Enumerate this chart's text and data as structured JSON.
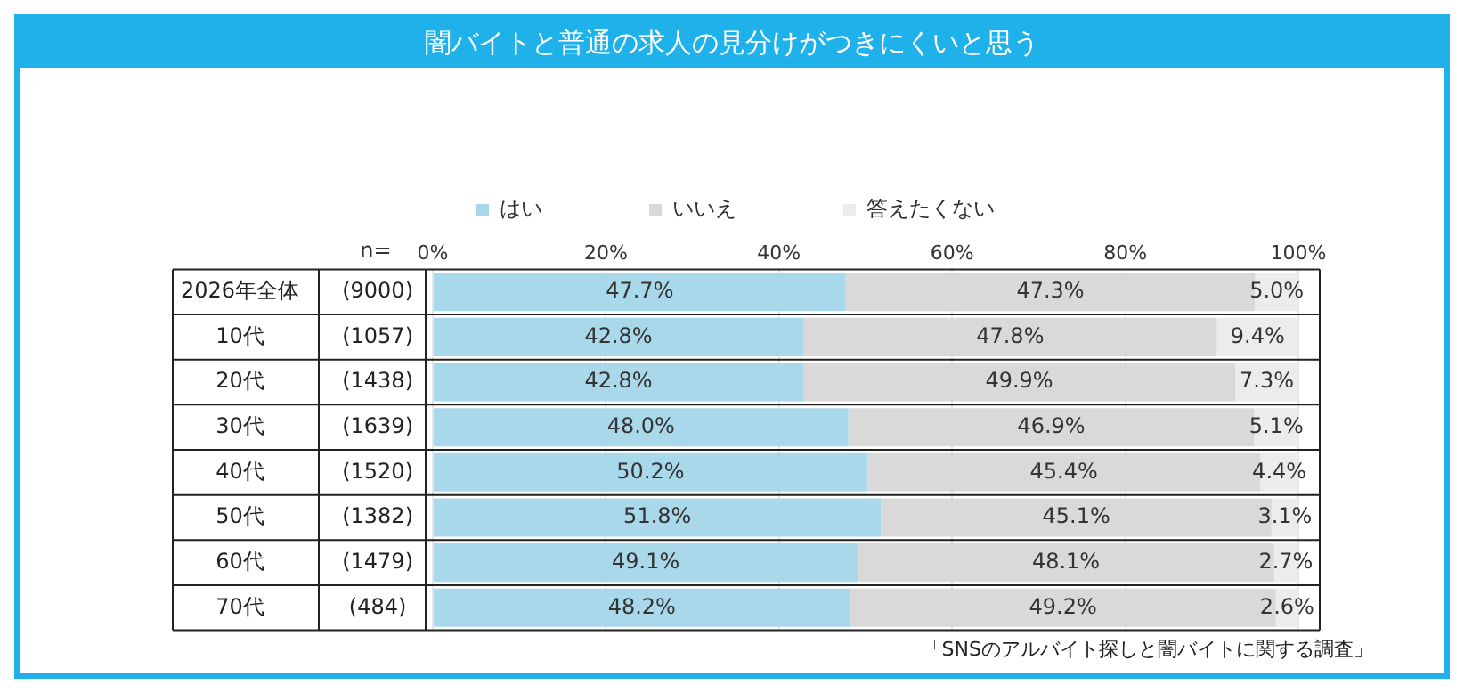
{
  "chart_data": {
    "type": "bar",
    "orientation": "horizontal",
    "stacked": true,
    "title": "闇バイトと普通の求人の見分けがつきにくいと思う",
    "categories": [
      "2026年全体",
      "10代",
      "20代",
      "30代",
      "40代",
      "50代",
      "60代",
      "70代"
    ],
    "y2_categories": [
      "(9000)",
      "(1057)",
      "(1438)",
      "(1639)",
      "(1520)",
      "(1382)",
      "(1479)",
      "(484)"
    ],
    "legend_title": "n=",
    "series": [
      {
        "name": "はい",
        "color": "#a9d8ea",
        "values": [
          47.7,
          42.8,
          42.8,
          48.0,
          50.2,
          51.8,
          49.1,
          48.2
        ],
        "value_labels": [
          "47.7%",
          "42.8%",
          "42.8%",
          "48.0%",
          "50.2%",
          "51.8%",
          "49.1%",
          "48.2%"
        ]
      },
      {
        "name": "いいえ",
        "color": "#d9d9d9",
        "values": [
          47.3,
          47.8,
          49.9,
          46.9,
          45.4,
          45.1,
          48.1,
          49.2
        ],
        "value_labels": [
          "47.3%",
          "47.8%",
          "49.9%",
          "46.9%",
          "45.4%",
          "45.1%",
          "48.1%",
          "49.2%"
        ]
      },
      {
        "name": "答えたくない",
        "color": "#ececec",
        "values": [
          5.0,
          9.4,
          7.3,
          5.1,
          4.4,
          3.1,
          2.7,
          2.6
        ],
        "value_labels": [
          "5.0%",
          "9.4%",
          "7.3%",
          "5.1%",
          "4.4%",
          "3.1%",
          "2.7%",
          "2.6%"
        ]
      }
    ],
    "xlim": [
      0,
      100
    ],
    "xticks": [
      {
        "value": 0,
        "label": "0%"
      },
      {
        "value": 20,
        "label": "20%"
      },
      {
        "value": 40,
        "label": "40%"
      },
      {
        "value": 60,
        "label": "60%"
      },
      {
        "value": 80,
        "label": "80%"
      },
      {
        "value": 100,
        "label": "100%"
      }
    ],
    "grid": "x",
    "legend": "top",
    "annotations": [
      "「SNSのアルバイト探しと闇バイトに関する調査」"
    ]
  }
}
